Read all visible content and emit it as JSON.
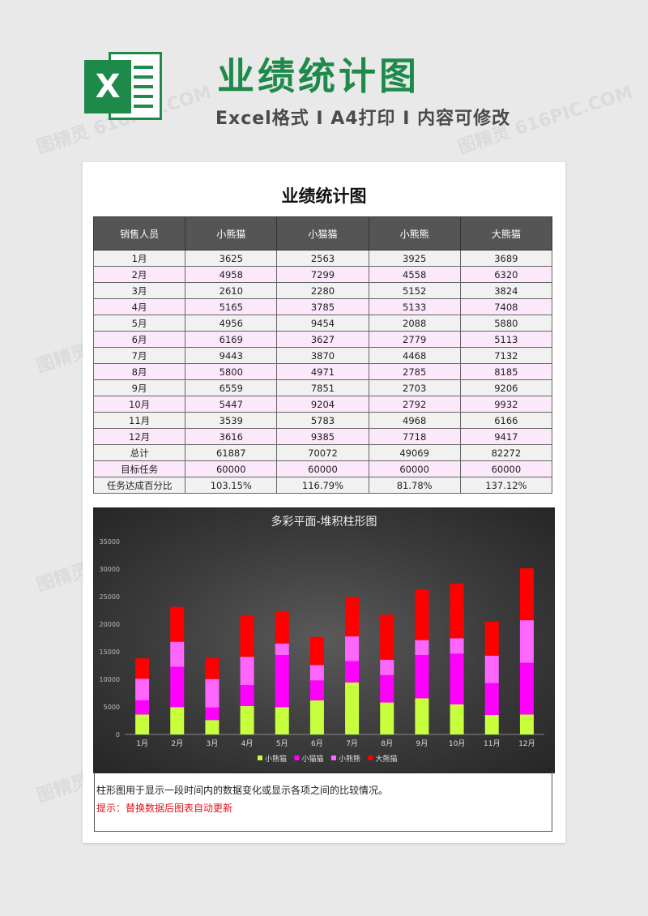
{
  "header": {
    "logo_letter": "X",
    "title": "业绩统计图",
    "subtitle": "Excel格式 I A4打印 I 内容可修改"
  },
  "document": {
    "title": "业绩统计图",
    "table": {
      "headers": [
        "销售人员",
        "小熊猫",
        "小猫猫",
        "小熊熊",
        "大熊猫"
      ],
      "rows": [
        [
          "1月",
          "3625",
          "2563",
          "3925",
          "3689"
        ],
        [
          "2月",
          "4958",
          "7299",
          "4558",
          "6320"
        ],
        [
          "3月",
          "2610",
          "2280",
          "5152",
          "3824"
        ],
        [
          "4月",
          "5165",
          "3785",
          "5133",
          "7408"
        ],
        [
          "5月",
          "4956",
          "9454",
          "2088",
          "5880"
        ],
        [
          "6月",
          "6169",
          "3627",
          "2779",
          "5113"
        ],
        [
          "7月",
          "9443",
          "3870",
          "4468",
          "7132"
        ],
        [
          "8月",
          "5800",
          "4971",
          "2785",
          "8185"
        ],
        [
          "9月",
          "6559",
          "7851",
          "2703",
          "9206"
        ],
        [
          "10月",
          "5447",
          "9204",
          "2792",
          "9932"
        ],
        [
          "11月",
          "3539",
          "5783",
          "4968",
          "6166"
        ],
        [
          "12月",
          "3616",
          "9385",
          "7718",
          "9417"
        ],
        [
          "总计",
          "61887",
          "70072",
          "49069",
          "82272"
        ],
        [
          "目标任务",
          "60000",
          "60000",
          "60000",
          "60000"
        ],
        [
          "任务达成百分比",
          "103.15%",
          "116.79%",
          "81.78%",
          "137.12%"
        ]
      ]
    },
    "notes": {
      "line1": "柱形图用于显示一段时间内的数据变化或显示各项之间的比较情况。",
      "line2": "提示：替换数据后图表自动更新"
    }
  },
  "watermark": "图精灵 616PIC.COM",
  "colors": {
    "brand_green": "#1e8a4a",
    "series": [
      "#c8ff3c",
      "#ff00ff",
      "#ff66ff",
      "#ff0000"
    ]
  },
  "chart_data": {
    "type": "bar",
    "stacked": true,
    "title": "多彩平面-堆积柱形图",
    "categories": [
      "1月",
      "2月",
      "3月",
      "4月",
      "5月",
      "6月",
      "7月",
      "8月",
      "9月",
      "10月",
      "11月",
      "12月"
    ],
    "series": [
      {
        "name": "小熊猫",
        "values": [
          3625,
          4958,
          2610,
          5165,
          4956,
          6169,
          9443,
          5800,
          6559,
          5447,
          3539,
          3616
        ]
      },
      {
        "name": "小猫猫",
        "values": [
          2563,
          7299,
          2280,
          3785,
          9454,
          3627,
          3870,
          4971,
          7851,
          9204,
          5783,
          9385
        ]
      },
      {
        "name": "小熊熊",
        "values": [
          3925,
          4558,
          5152,
          5133,
          2088,
          2779,
          4468,
          2785,
          2703,
          2792,
          4968,
          7718
        ]
      },
      {
        "name": "大熊猫",
        "values": [
          3689,
          6320,
          3824,
          7408,
          5880,
          5113,
          7132,
          8185,
          9206,
          9932,
          6166,
          9417
        ]
      }
    ],
    "ylim": [
      0,
      35000
    ],
    "yticks": [
      "0",
      "5000",
      "10000",
      "15000",
      "20000",
      "25000",
      "30000",
      "35000"
    ],
    "grid": false,
    "legend": "bottom"
  }
}
